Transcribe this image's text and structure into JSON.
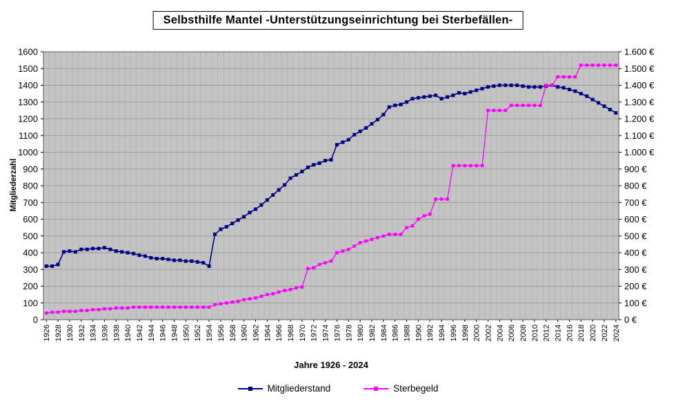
{
  "chart_data": {
    "type": "line",
    "title": "Selbsthilfe Mantel -Unterstützungseinrichtung bei Sterbefällen-",
    "xlabel": "Jahre 1926 - 2024",
    "ylabel": "Mitgliederzahl",
    "x_range": [
      1926,
      2024
    ],
    "x_step": 1,
    "ylim": [
      0,
      1600
    ],
    "grid": true,
    "legend_position": "bottom",
    "y_tick_labels_left": [
      "0",
      "100",
      "200",
      "300",
      "400",
      "500",
      "600",
      "700",
      "800",
      "900",
      "1000",
      "1100",
      "1200",
      "1300",
      "1400",
      "1500",
      "1600"
    ],
    "y_tick_labels_right": [
      "0 €",
      "100 €",
      "200 €",
      "300 €",
      "400 €",
      "500 €",
      "600 €",
      "700 €",
      "800 €",
      "900 €",
      "1.000 €",
      "1.100 €",
      "1.200 €",
      "1.300 €",
      "1.400 €",
      "1.500 €",
      "1.600 €"
    ],
    "x_tick_labels": [
      "1926",
      "1928",
      "1930",
      "1932",
      "1934",
      "1936",
      "1938",
      "1940",
      "1942",
      "1944",
      "1946",
      "1948",
      "1950",
      "1952",
      "1954",
      "1956",
      "1958",
      "1960",
      "1962",
      "1964",
      "1966",
      "1968",
      "1970",
      "1972",
      "1974",
      "1976",
      "1978",
      "1980",
      "1982",
      "1984",
      "1986",
      "1988",
      "1990",
      "1992",
      "1994",
      "1996",
      "1998",
      "2000",
      "2002",
      "2004",
      "2006",
      "2008",
      "2010",
      "2012",
      "2014",
      "2016",
      "2018",
      "2020",
      "2022",
      "2024"
    ],
    "series": [
      {
        "name": "Mitgliederstand",
        "color": "#000080",
        "marker": "square",
        "values": [
          320,
          320,
          330,
          405,
          410,
          405,
          420,
          420,
          425,
          425,
          430,
          420,
          410,
          405,
          400,
          395,
          385,
          380,
          370,
          365,
          365,
          360,
          355,
          355,
          350,
          350,
          345,
          340,
          320,
          510,
          540,
          555,
          575,
          595,
          615,
          640,
          660,
          685,
          715,
          745,
          775,
          805,
          845,
          865,
          885,
          910,
          925,
          935,
          950,
          955,
          1045,
          1060,
          1075,
          1105,
          1125,
          1145,
          1170,
          1195,
          1225,
          1270,
          1280,
          1285,
          1300,
          1320,
          1325,
          1330,
          1335,
          1340,
          1320,
          1330,
          1340,
          1355,
          1350,
          1360,
          1370,
          1380,
          1390,
          1395,
          1400,
          1400,
          1400,
          1400,
          1395,
          1390,
          1390,
          1390,
          1395,
          1400,
          1390,
          1385,
          1375,
          1365,
          1350,
          1335,
          1315,
          1295,
          1275,
          1255,
          1235
        ]
      },
      {
        "name": "Sterbegeld",
        "color": "#FF00FF",
        "marker": "square",
        "values": [
          40,
          45,
          45,
          50,
          50,
          50,
          55,
          55,
          60,
          60,
          65,
          65,
          70,
          70,
          70,
          75,
          75,
          75,
          75,
          75,
          75,
          75,
          75,
          75,
          75,
          75,
          75,
          75,
          75,
          90,
          95,
          100,
          105,
          110,
          120,
          125,
          130,
          140,
          150,
          155,
          165,
          175,
          180,
          190,
          195,
          305,
          310,
          330,
          340,
          350,
          400,
          410,
          420,
          440,
          460,
          470,
          480,
          490,
          500,
          510,
          510,
          510,
          550,
          560,
          600,
          620,
          630,
          720,
          720,
          720,
          920,
          920,
          920,
          920,
          920,
          920,
          1250,
          1250,
          1250,
          1250,
          1280,
          1280,
          1280,
          1280,
          1280,
          1280,
          1400,
          1400,
          1450,
          1450,
          1450,
          1450,
          1520,
          1520,
          1520,
          1520,
          1520,
          1520,
          1520
        ]
      }
    ]
  }
}
